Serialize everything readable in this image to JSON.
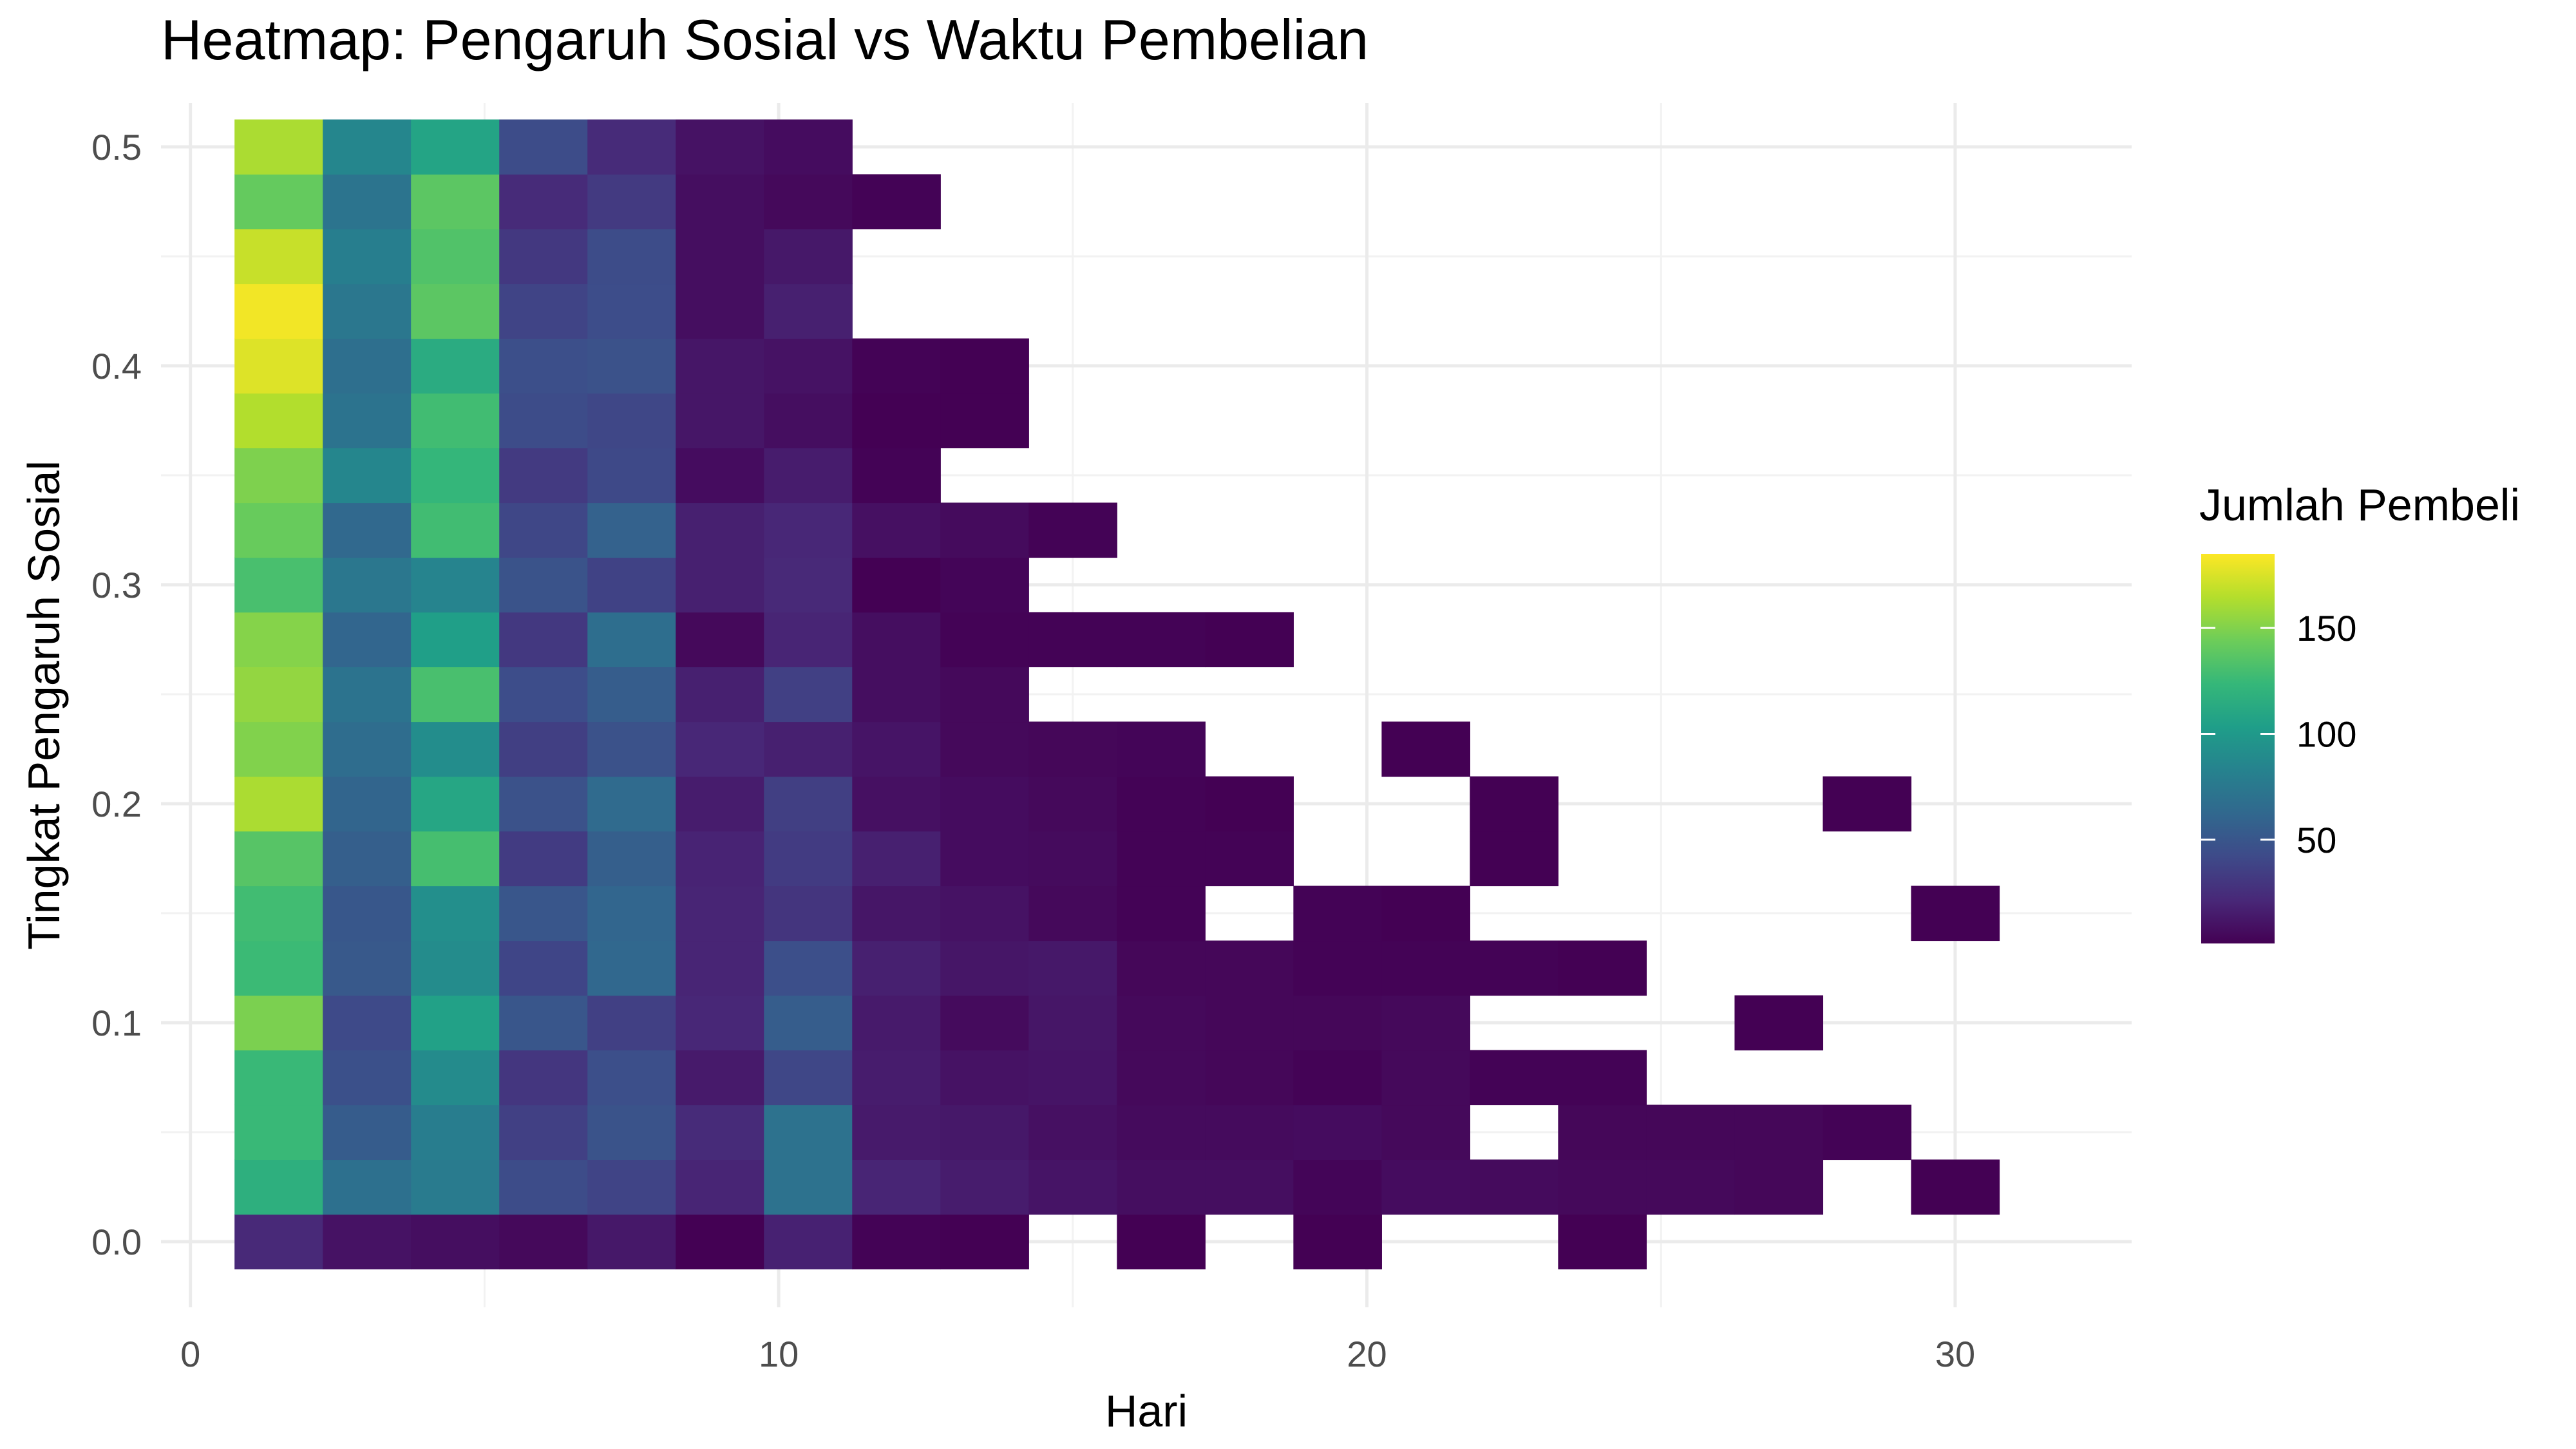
{
  "chart_data": {
    "type": "heatmap",
    "title": "Heatmap: Pengaruh Sosial vs Waktu Pembelian",
    "xlabel": "Hari",
    "ylabel": "Tingkat Pengaruh Sosial",
    "xlim": [
      -0.5,
      33
    ],
    "ylim": [
      -0.03,
      0.52
    ],
    "x_ticks": [
      0,
      10,
      20,
      30
    ],
    "x_tick_labels": [
      "0",
      "10",
      "20",
      "30"
    ],
    "y_ticks": [
      0.0,
      0.1,
      0.2,
      0.3,
      0.4,
      0.5
    ],
    "y_tick_labels": [
      "0.0",
      "0.1",
      "0.2",
      "0.3",
      "0.4",
      "0.5"
    ],
    "grid": true,
    "bin_width_x": 1.5,
    "bin_width_y": 0.025,
    "x_bin_centers": [
      1.5,
      3.0,
      4.5,
      6.0,
      7.5,
      9.0,
      10.5,
      12.0,
      13.5,
      15.0,
      16.5,
      18.0,
      19.5,
      21.0,
      22.5,
      24.0,
      25.5,
      27.0,
      28.5,
      30.0
    ],
    "y_bin_centers": [
      0.0,
      0.025,
      0.05,
      0.075,
      0.1,
      0.125,
      0.15,
      0.175,
      0.2,
      0.225,
      0.25,
      0.275,
      0.3,
      0.325,
      0.35,
      0.375,
      0.4,
      0.425,
      0.45,
      0.475,
      0.5
    ],
    "counts": [
      [
        22,
        10,
        8,
        5,
        13,
        1,
        18,
        2,
        1,
        null,
        1,
        null,
        1,
        null,
        null,
        1,
        null,
        null,
        null,
        null
      ],
      [
        117,
        69,
        77,
        43,
        38,
        20,
        70,
        20,
        15,
        11,
        8,
        8,
        3,
        7,
        6,
        5,
        5,
        4,
        null,
        1
      ],
      [
        125,
        54,
        79,
        36,
        48,
        23,
        70,
        14,
        13,
        9,
        6,
        6,
        7,
        5,
        null,
        4,
        4,
        4,
        2,
        null
      ],
      [
        125,
        46,
        89,
        30,
        45,
        14,
        40,
        15,
        10,
        11,
        5,
        4,
        2,
        5,
        2,
        2,
        null,
        null,
        null,
        null
      ],
      [
        148,
        42,
        106,
        50,
        36,
        21,
        55,
        14,
        6,
        12,
        5,
        4,
        4,
        5,
        null,
        null,
        null,
        1,
        null,
        null
      ],
      [
        126,
        52,
        90,
        39,
        62,
        20,
        45,
        17,
        12,
        13,
        4,
        4,
        2,
        2,
        2,
        1,
        null,
        null,
        null,
        null
      ],
      [
        128,
        51,
        92,
        50,
        61,
        20,
        29,
        12,
        10,
        5,
        2,
        null,
        2,
        1,
        null,
        null,
        null,
        null,
        null,
        1
      ],
      [
        136,
        56,
        130,
        33,
        56,
        19,
        33,
        17,
        7,
        6,
        2,
        2,
        null,
        null,
        1,
        null,
        null,
        null,
        null,
        null
      ],
      [
        162,
        60,
        110,
        47,
        65,
        15,
        35,
        9,
        7,
        5,
        2,
        1,
        null,
        null,
        1,
        null,
        null,
        null,
        1,
        null
      ],
      [
        150,
        66,
        91,
        35,
        47,
        21,
        17,
        11,
        5,
        4,
        3,
        null,
        null,
        1,
        null,
        null,
        null,
        null,
        null,
        null
      ],
      [
        155,
        71,
        131,
        44,
        55,
        17,
        36,
        8,
        5,
        null,
        null,
        null,
        null,
        null,
        null,
        null,
        null,
        null,
        null,
        null
      ],
      [
        151,
        61,
        104,
        31,
        67,
        5,
        20,
        8,
        2,
        2,
        2,
        1,
        null,
        null,
        null,
        null,
        null,
        null,
        null,
        null
      ],
      [
        131,
        74,
        84,
        48,
        37,
        17,
        22,
        1,
        3,
        null,
        null,
        null,
        null,
        null,
        null,
        null,
        null,
        null,
        null,
        null
      ],
      [
        142,
        63,
        128,
        40,
        58,
        17,
        21,
        9,
        6,
        2,
        null,
        null,
        null,
        null,
        null,
        null,
        null,
        null,
        null,
        null
      ],
      [
        149,
        86,
        123,
        32,
        41,
        7,
        15,
        2,
        null,
        null,
        null,
        null,
        null,
        null,
        null,
        null,
        null,
        null,
        null,
        null
      ],
      [
        164,
        71,
        128,
        43,
        40,
        12,
        8,
        1,
        1,
        null,
        null,
        null,
        null,
        null,
        null,
        null,
        null,
        null,
        null,
        null
      ],
      [
        176,
        68,
        114,
        45,
        47,
        12,
        10,
        2,
        1,
        null,
        null,
        null,
        null,
        null,
        null,
        null,
        null,
        null,
        null,
        null
      ],
      [
        182,
        74,
        138,
        38,
        44,
        8,
        17,
        null,
        null,
        null,
        null,
        null,
        null,
        null,
        null,
        null,
        null,
        null,
        null,
        null
      ],
      [
        170,
        80,
        134,
        31,
        43,
        8,
        13,
        null,
        null,
        null,
        null,
        null,
        null,
        null,
        null,
        null,
        null,
        null,
        null,
        null
      ],
      [
        141,
        72,
        138,
        23,
        32,
        8,
        5,
        2,
        null,
        null,
        null,
        null,
        null,
        null,
        null,
        null,
        null,
        null,
        null,
        null
      ],
      [
        162,
        86,
        108,
        43,
        23,
        10,
        7,
        null,
        null,
        null,
        null,
        null,
        null,
        null,
        null,
        null,
        null,
        null,
        null,
        null
      ]
    ],
    "legend": {
      "title": "Jumlah Pembeli",
      "placement": "right",
      "min": 1,
      "max": 185,
      "ticks": [
        50,
        100,
        150
      ],
      "tick_labels": [
        "50",
        "100",
        "150"
      ]
    },
    "colorscale": "viridis",
    "colors": [
      "#440154",
      "#482878",
      "#3E4A89",
      "#31688E",
      "#26828E",
      "#1F9E89",
      "#35B779",
      "#6DCD59",
      "#B4DE2C",
      "#FDE725"
    ]
  }
}
